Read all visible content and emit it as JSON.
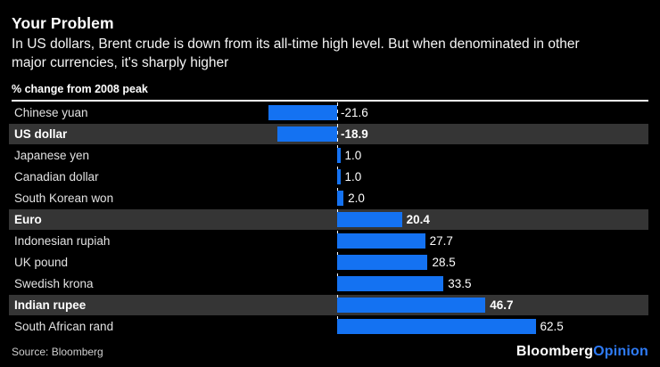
{
  "header": {
    "title": "Your Problem",
    "subtitle_lines": [
      "In US dollars, Brent crude is down from its all-time high level. But when denominated in other",
      "major currencies, it's sharply higher"
    ]
  },
  "chart_data": {
    "type": "bar",
    "orientation": "horizontal",
    "title": "Your Problem",
    "axis_label": "% change from 2008 peak",
    "baseline": 0,
    "zero_line_style": "dashed",
    "grid": false,
    "legend": false,
    "xlim": [
      -25,
      75
    ],
    "categories": [
      "Chinese yuan",
      "US dollar",
      "Japanese yen",
      "Canadian dollar",
      "South Korean won",
      "Euro",
      "Indonesian rupiah",
      "UK pound",
      "Swedish krona",
      "Indian rupee",
      "South African rand"
    ],
    "values": [
      -21.6,
      -18.9,
      1.0,
      1.0,
      2.0,
      20.4,
      27.7,
      28.5,
      33.5,
      46.7,
      62.5
    ],
    "value_labels": [
      "-21.6",
      "-18.9",
      "1.0",
      "1.0",
      "2.0",
      "20.4",
      "27.7",
      "28.5",
      "33.5",
      "46.7",
      "62.5"
    ],
    "highlighted_categories": [
      "US dollar",
      "Euro",
      "Indian rupee"
    ]
  },
  "footer": {
    "source": "Source: Bloomberg",
    "brand_part1": "Bloomberg",
    "brand_part2": "Opinion"
  },
  "colors": {
    "background": "#000000",
    "bar_blue": "#1472f2",
    "highlight_band": "#353535",
    "rule_white": "#ffffff",
    "label_gray": "#e2e2e2",
    "source_gray": "#cfcfcf",
    "brand_opinion_blue": "#2e7bf6"
  }
}
